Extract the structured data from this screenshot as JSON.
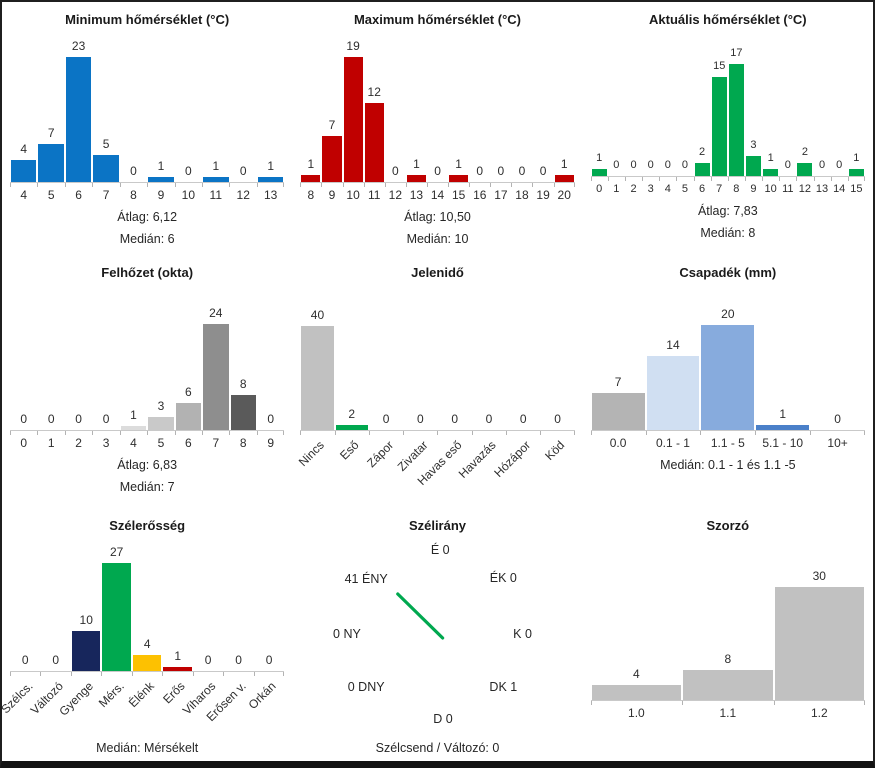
{
  "page": {
    "background": "#ffffff",
    "frame_border": "#1f1f1f"
  },
  "chart_data": [
    {
      "type": "bar",
      "title": "Minimum hőmérséklet (°C)",
      "categories": [
        "4",
        "5",
        "6",
        "7",
        "8",
        "9",
        "10",
        "11",
        "12",
        "13"
      ],
      "values": [
        4,
        7,
        23,
        5,
        0,
        1,
        0,
        1,
        0,
        1
      ],
      "bar_color": "#0b74c5",
      "mean_label": "Átlag: 6,12",
      "median_label": "Medián: 6",
      "ylim": [
        0,
        23
      ]
    },
    {
      "type": "bar",
      "title": "Maximum hőmérséklet (°C)",
      "categories": [
        "8",
        "9",
        "10",
        "11",
        "12",
        "13",
        "14",
        "15",
        "16",
        "17",
        "18",
        "19",
        "20"
      ],
      "values": [
        1,
        7,
        19,
        12,
        0,
        1,
        0,
        1,
        0,
        0,
        0,
        0,
        1
      ],
      "bar_color": "#c00000",
      "mean_label": "Átlag: 10,50",
      "median_label": "Medián: 10",
      "ylim": [
        0,
        19
      ]
    },
    {
      "type": "bar",
      "title": "Aktuális hőmérséklet (°C)",
      "categories": [
        "0",
        "1",
        "2",
        "3",
        "4",
        "5",
        "6",
        "7",
        "8",
        "9",
        "10",
        "11",
        "12",
        "13",
        "14",
        "15"
      ],
      "values": [
        1,
        0,
        0,
        0,
        0,
        0,
        2,
        15,
        17,
        3,
        1,
        0,
        2,
        0,
        0,
        1
      ],
      "bar_color": "#00a84f",
      "mean_label": "Átlag: 7,83",
      "median_label": "Medián: 8",
      "ylim": [
        0,
        17
      ]
    },
    {
      "type": "bar",
      "title": "Felhőzet (okta)",
      "categories": [
        "0",
        "1",
        "2",
        "3",
        "4",
        "5",
        "6",
        "7",
        "8",
        "9"
      ],
      "values": [
        0,
        0,
        0,
        0,
        1,
        3,
        6,
        24,
        8,
        0
      ],
      "bar_colors": [
        "#f0f0f0",
        "#eaeaea",
        "#e4e4e4",
        "#dedede",
        "#dcdcdc",
        "#c9c9c9",
        "#b2b2b2",
        "#8e8e8e",
        "#5a5a5a",
        "#4f4f4f"
      ],
      "mean_label": "Átlag: 6,83",
      "median_label": "Medián: 7",
      "ylim": [
        0,
        24
      ]
    },
    {
      "type": "bar",
      "title": "Jelenidő",
      "categories": [
        "Nincs",
        "Eső",
        "Zápor",
        "Zivatar",
        "Havas eső",
        "Havazás",
        "Hózápor",
        "Köd"
      ],
      "values": [
        40,
        2,
        0,
        0,
        0,
        0,
        0,
        0
      ],
      "bar_colors": [
        "#c1c1c1",
        "#00a84f",
        "#c1c1c1",
        "#c1c1c1",
        "#c1c1c1",
        "#c1c1c1",
        "#c1c1c1",
        "#c1c1c1"
      ],
      "ylim": [
        0,
        40
      ]
    },
    {
      "type": "bar",
      "title": "Csapadék (mm)",
      "categories": [
        "0.0",
        "0.1 - 1",
        "1.1 - 5",
        "5.1 - 10",
        "10+"
      ],
      "values": [
        7,
        14,
        20,
        1,
        0
      ],
      "bar_colors": [
        "#b4b4b4",
        "#d0dff2",
        "#87abdd",
        "#4a80c9",
        "#87abdd"
      ],
      "median_label": "Medián: 0.1 - 1 és 1.1 -5",
      "ylim": [
        0,
        20
      ]
    },
    {
      "type": "bar",
      "title": "Szélerősség",
      "categories": [
        "Szélcs.",
        "Változó",
        "Gyenge",
        "Mérs.",
        "Élénk",
        "Erős",
        "Viharos",
        "Erősen v.",
        "Orkán"
      ],
      "values": [
        0,
        0,
        10,
        27,
        4,
        1,
        0,
        0,
        0
      ],
      "bar_colors": [
        "#c1c1c1",
        "#c1c1c1",
        "#17265c",
        "#00a84f",
        "#fdc101",
        "#c00000",
        "#c1c1c1",
        "#c1c1c1",
        "#c1c1c1"
      ],
      "median_label": "Medián: Mérsékelt",
      "ylim": [
        0,
        27
      ]
    },
    {
      "type": "compass",
      "title": "Szélirány",
      "directions": [
        {
          "name": "É",
          "count": 0,
          "display": "É 0"
        },
        {
          "name": "ÉK",
          "count": 0,
          "display": "ÉK 0"
        },
        {
          "name": "K",
          "count": 0,
          "display": "K 0"
        },
        {
          "name": "DK",
          "count": 1,
          "display": "DK 1"
        },
        {
          "name": "D",
          "count": 0,
          "display": "D 0"
        },
        {
          "name": "DNY",
          "count": 0,
          "display": "0 DNY"
        },
        {
          "name": "NY",
          "count": 0,
          "display": "0 NY"
        },
        {
          "name": "ÉNY",
          "count": 41,
          "display": "41 ÉNY"
        }
      ],
      "line_color": "#00a84f",
      "footer": "Szélcsend / Változó: 0"
    },
    {
      "type": "bar",
      "title": "Szorzó",
      "categories": [
        "1.0",
        "1.1",
        "1.2"
      ],
      "values": [
        4,
        8,
        30
      ],
      "bar_color": "#c1c1c1",
      "ylim": [
        0,
        30
      ]
    }
  ]
}
